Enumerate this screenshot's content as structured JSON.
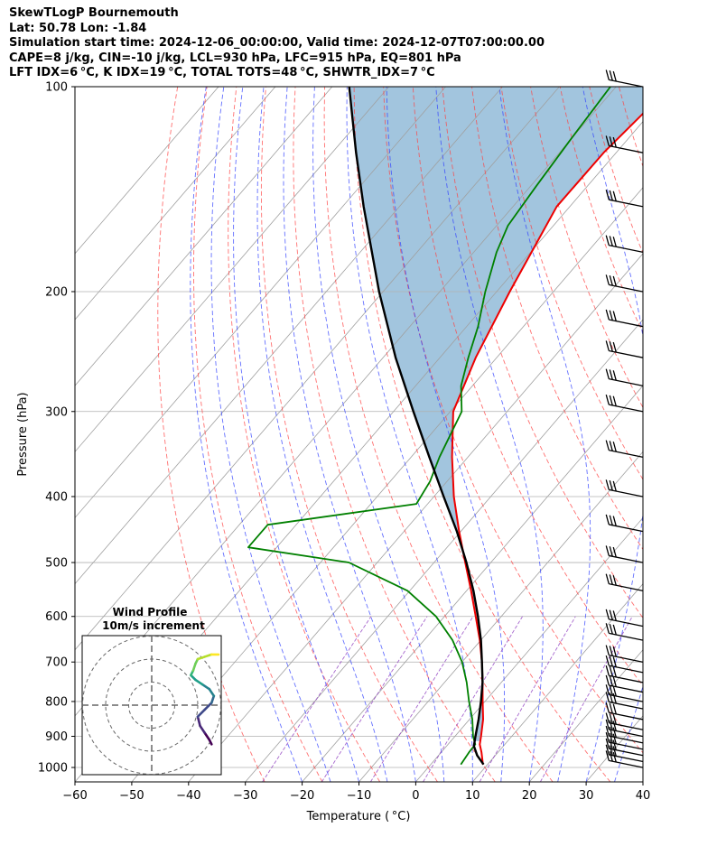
{
  "header": {
    "title": "SkewTLogP Bournemouth",
    "location": "Lat: 50.78   Lon: -1.84",
    "times": "Simulation start time: 2024-12-06_00:00:00, Valid time: 2024-12-07T07:00:00.00",
    "indices_1": "CAPE=8 j/kg, CIN=-10 j/kg, LCL=930 hPa, LFC=915 hPa, EQ=801 hPa",
    "indices_2": "LFT IDX=6 °C, K IDX=19 °C, TOTAL TOTS=48 °C, SHWTR_IDX=7 °C"
  },
  "colors": {
    "temperature": "#ee0000",
    "dewpoint": "#008000",
    "parcel": "#000000",
    "cape_fill": "#a2c5de",
    "dry_adiabats": "#ff4040",
    "moist_adiabats": "#3040ff",
    "mixing_ratio": "#9040c0",
    "isotherms": "#a0a0a0",
    "isobars": "#b0b0b0"
  },
  "chart_data": [
    {
      "type": "line",
      "kind": "skew-t log-p",
      "xlabel": "Temperature ( °C)",
      "ylabel": "Pressure (hPa)",
      "xlim": [
        -60,
        40
      ],
      "ylim_hpa": [
        1050,
        100
      ],
      "x_ticks": [
        -60,
        -50,
        -40,
        -30,
        -20,
        -10,
        0,
        10,
        20,
        30,
        40
      ],
      "y_ticks": [
        1000,
        900,
        800,
        700,
        600,
        500,
        400,
        300,
        200,
        100
      ],
      "y_scale": "log",
      "grid": true,
      "series": [
        {
          "id": "temperature",
          "p": [
            990,
            950,
            925,
            900,
            850,
            800,
            750,
            700,
            650,
            600,
            550,
            500,
            450,
            400,
            350,
            300,
            250,
            200,
            150,
            125,
            100
          ],
          "t": [
            9.2,
            7.1,
            5.6,
            4.6,
            2.4,
            -0.4,
            -3.3,
            -6.5,
            -10.2,
            -14.5,
            -19.2,
            -24.5,
            -30.3,
            -36.5,
            -42.8,
            -49.5,
            -53.7,
            -57.7,
            -62.3,
            -62.2,
            -60.5
          ]
        },
        {
          "id": "dewpoint",
          "p": [
            990,
            950,
            925,
            900,
            850,
            800,
            750,
            700,
            650,
            600,
            550,
            500,
            475,
            440,
            410,
            380,
            350,
            300,
            275,
            250,
            225,
            200,
            175,
            160,
            140,
            120,
            100
          ],
          "t": [
            5.3,
            4.9,
            4.8,
            3.2,
            0.5,
            -2.8,
            -6.1,
            -10.0,
            -15.0,
            -21.5,
            -30.4,
            -45.0,
            -65.0,
            -65.0,
            -42.0,
            -43.0,
            -45.0,
            -48.0,
            -52.0,
            -55.0,
            -58.0,
            -62.0,
            -66.0,
            -68.0,
            -69.0,
            -70.0,
            -71.0
          ]
        },
        {
          "id": "parcel",
          "p": [
            990,
            960,
            930,
            900,
            850,
            800,
            750,
            700,
            650,
            600,
            550,
            500,
            450,
            400,
            350,
            300,
            250,
            200,
            150,
            125,
            100
          ],
          "t": [
            9.3,
            6.8,
            4.8,
            3.6,
            1.6,
            -0.7,
            -3.3,
            -6.5,
            -10.0,
            -14.1,
            -18.8,
            -24.3,
            -30.7,
            -38.3,
            -46.8,
            -56.5,
            -67.8,
            -80.7,
            -96.3,
            -105.8,
            -117.0
          ]
        }
      ],
      "wind_barbs_p": [
        1000,
        980,
        960,
        940,
        920,
        900,
        880,
        850,
        820,
        800,
        775,
        750,
        725,
        700,
        650,
        620,
        550,
        500,
        450,
        400,
        350,
        300,
        275,
        250,
        225,
        200,
        175,
        150,
        125,
        100
      ]
    },
    {
      "type": "scatter",
      "kind": "hodograph",
      "title": "Wind Profile",
      "subtitle": "10m/s increment",
      "ring_step_ms": 10,
      "rings": [
        1,
        2,
        3
      ],
      "u": [
        26,
        25,
        23,
        21,
        20,
        23,
        26,
        27,
        25,
        22,
        19,
        17,
        18,
        19,
        20,
        23,
        26,
        29
      ],
      "v": [
        -17,
        -15,
        -12,
        -9,
        -5,
        -2,
        1,
        4,
        7,
        9,
        11,
        13,
        15,
        18,
        20,
        21,
        22,
        22
      ]
    }
  ]
}
